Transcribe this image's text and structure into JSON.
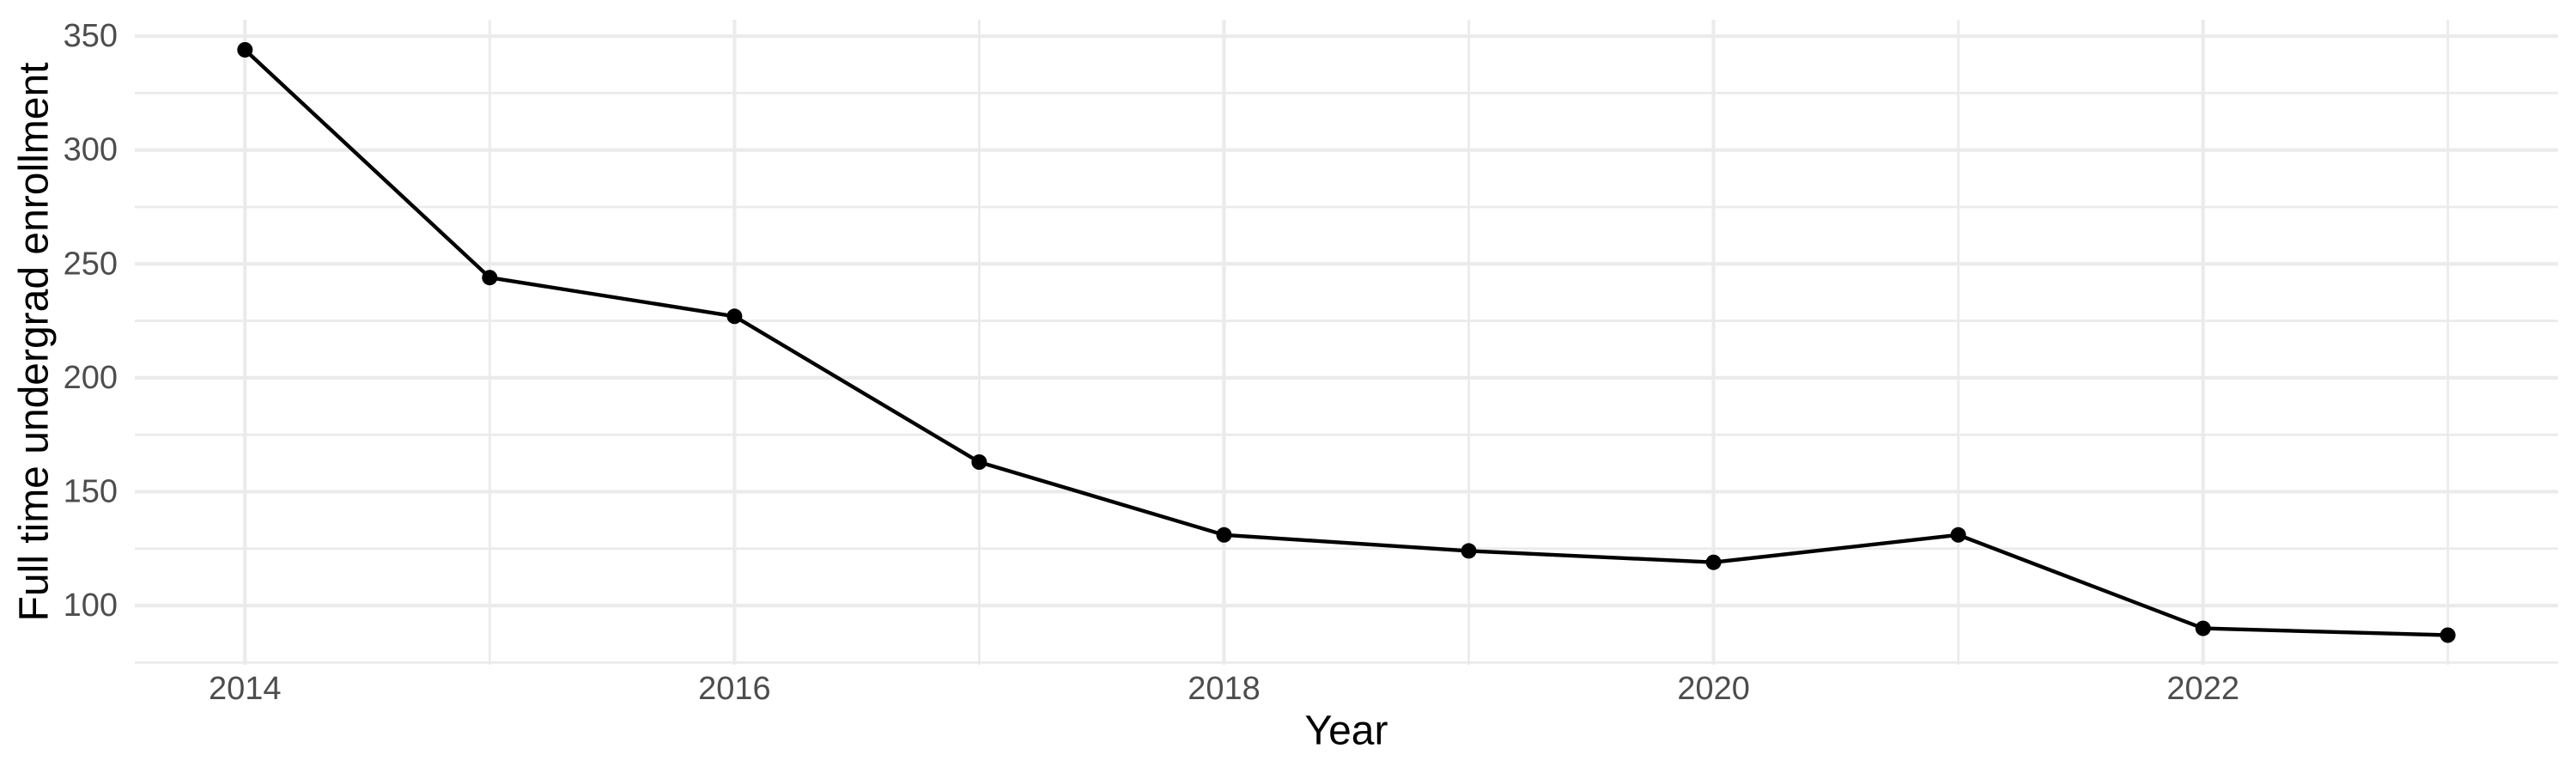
{
  "chart_data": {
    "type": "line",
    "title": "",
    "xlabel": "Year",
    "ylabel": "Full time undergrad enrollment",
    "x": [
      2014,
      2015,
      2016,
      2017,
      2018,
      2019,
      2020,
      2021,
      2022,
      2023
    ],
    "series": [
      {
        "name": "Full time undergrad enrollment",
        "values": [
          344,
          244,
          227,
          163,
          131,
          124,
          119,
          131,
          90,
          87
        ]
      }
    ],
    "xlim": [
      2013.55,
      2023.45
    ],
    "ylim": [
      74,
      357.2
    ],
    "x_major_ticks": [
      2014,
      2016,
      2018,
      2020,
      2022
    ],
    "x_major_tick_labels": [
      "2014",
      "2016",
      "2018",
      "2020",
      "2022"
    ],
    "x_minor_ticks": [
      2015,
      2017,
      2019,
      2021,
      2023
    ],
    "y_major_ticks": [
      100,
      150,
      200,
      250,
      300,
      350
    ],
    "y_major_tick_labels": [
      "100",
      "150",
      "200",
      "250",
      "300",
      "350"
    ],
    "y_minor_ticks": [
      75,
      125,
      175,
      225,
      275,
      325
    ],
    "grid": true,
    "legend": false,
    "marker": "point",
    "line_style": "solid"
  },
  "colors": {
    "line": "#000000",
    "point": "#000000",
    "grid_major": "#EBEBEB",
    "grid_minor": "#EBEBEB",
    "tick_text": "#4D4D4D",
    "axis_title_text": "#000000",
    "background": "#FFFFFF",
    "panel_background": "#FFFFFF"
  }
}
